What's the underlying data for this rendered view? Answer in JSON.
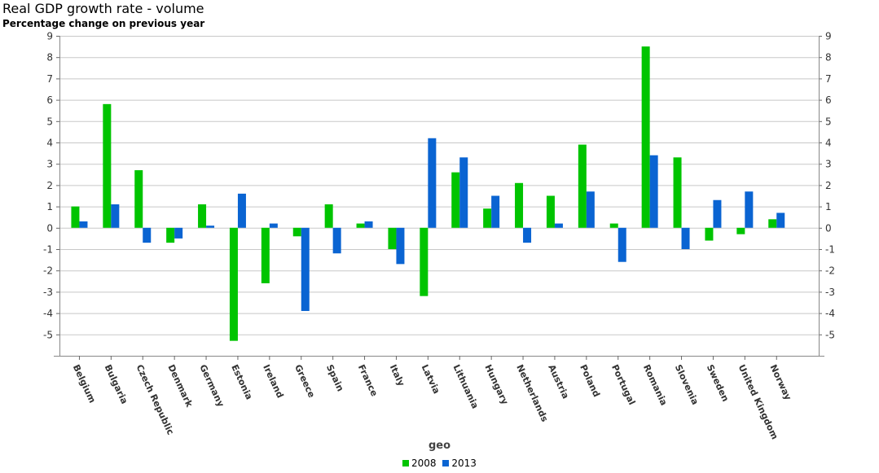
{
  "title": "Real GDP growth rate - volume",
  "subtitle": "Percentage change on previous year",
  "chart_data": {
    "type": "bar",
    "title": "Real GDP growth rate - volume",
    "subtitle": "Percentage change on previous year",
    "xlabel": "geo",
    "ylabel": "",
    "ylim": [
      -6,
      9
    ],
    "yticks": [
      -5,
      -4,
      -3,
      -2,
      -1,
      0,
      1,
      2,
      3,
      4,
      5,
      6,
      7,
      8,
      9
    ],
    "grid": true,
    "legend_position": "bottom",
    "categories": [
      "Belgium",
      "Bulgaria",
      "Czech Republic",
      "Denmark",
      "Germany",
      "Estonia",
      "Ireland",
      "Greece",
      "Spain",
      "France",
      "Italy",
      "Latvia",
      "Lithuania",
      "Hungary",
      "Netherlands",
      "Austria",
      "Poland",
      "Portugal",
      "Romania",
      "Slovenia",
      "Sweden",
      "United Kingdom",
      "Norway"
    ],
    "series": [
      {
        "name": "2008",
        "color": "#00c400",
        "values": [
          1.0,
          5.8,
          2.7,
          -0.7,
          1.1,
          -5.3,
          -2.6,
          -0.4,
          1.1,
          0.2,
          -1.0,
          -3.2,
          2.6,
          0.9,
          2.1,
          1.5,
          3.9,
          0.2,
          8.5,
          3.3,
          -0.6,
          -0.3,
          0.4
        ]
      },
      {
        "name": "2013",
        "color": "#0a64d2",
        "values": [
          0.3,
          1.1,
          -0.7,
          -0.5,
          0.1,
          1.6,
          0.2,
          -3.9,
          -1.2,
          0.3,
          -1.7,
          4.2,
          3.3,
          1.5,
          -0.7,
          0.2,
          1.7,
          -1.6,
          3.4,
          -1.0,
          1.3,
          1.7,
          0.7
        ]
      }
    ]
  }
}
